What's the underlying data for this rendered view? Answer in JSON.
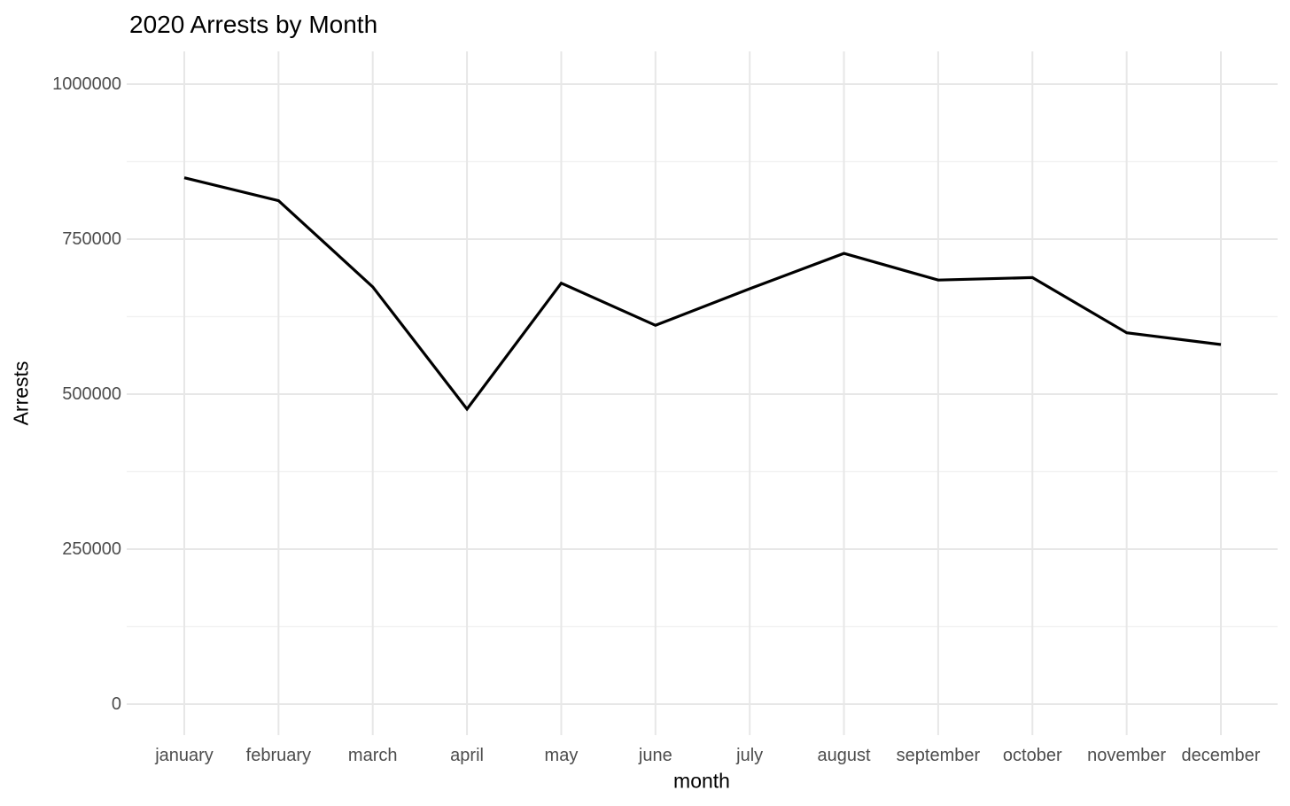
{
  "title": "2020 Arrests by Month",
  "chart_data": {
    "type": "line",
    "title": "2020 Arrests by Month",
    "xlabel": "month",
    "ylabel": "Arrests",
    "categories": [
      "january",
      "february",
      "march",
      "april",
      "may",
      "june",
      "july",
      "august",
      "september",
      "october",
      "november",
      "december"
    ],
    "series": [
      {
        "name": "arrests",
        "values": [
          849000,
          812000,
          673000,
          476000,
          679000,
          611000,
          670000,
          727000,
          684000,
          688000,
          599000,
          580000
        ]
      }
    ],
    "ylim": [
      0,
      1000000
    ],
    "yticks": [
      0,
      250000,
      500000,
      750000,
      1000000
    ],
    "ytick_labels": [
      "0",
      "250000",
      "500000",
      "750000",
      "1000000"
    ],
    "grid": "major and minor horizontal, major vertical per month",
    "legend": "none",
    "colors": {
      "line": "#000000",
      "grid_major": "#e7e7e7",
      "grid_minor": "#f1f1f1",
      "axis_text": "#4d4d4d",
      "background": "#ffffff"
    }
  }
}
